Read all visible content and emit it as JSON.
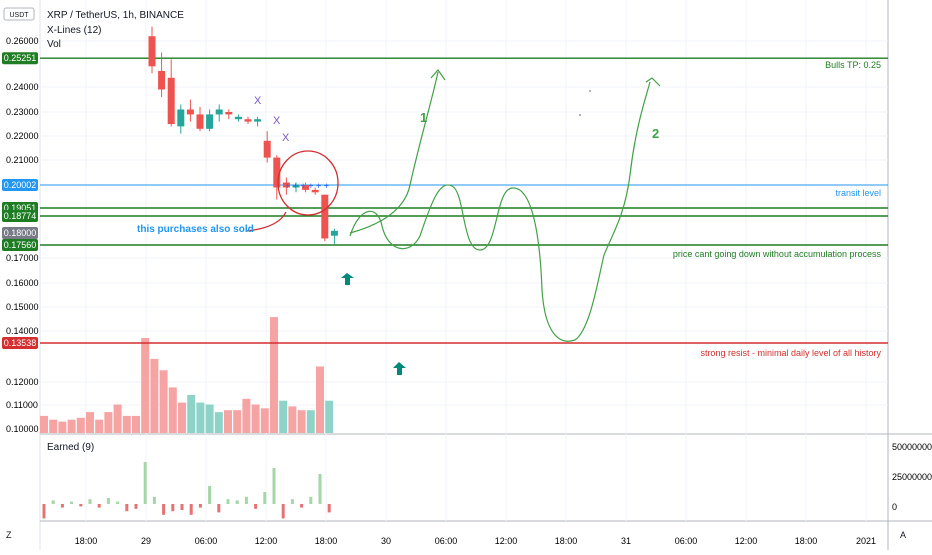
{
  "header": {
    "currency_badge": "USDT",
    "title": "XRP / TetherUS, 1h, BINANCE",
    "indicator_1": "X-Lines (12)",
    "indicator_2": "Vol",
    "pane_2_title": "Earned (9)"
  },
  "toolbar": {
    "left_btn": "Z",
    "right_btn": "A"
  },
  "y_axis": {
    "ticks": [
      "0.26000",
      "0.24000",
      "0.23000",
      "0.22000",
      "0.21000",
      "0.17000",
      "0.16000",
      "0.15000",
      "0.14000",
      "0.12000",
      "0.11000",
      "0.10000"
    ]
  },
  "price_tags": [
    {
      "label": "0.25251",
      "value": 0.25251,
      "color": "#1e7d22"
    },
    {
      "label": "0.20002",
      "value": 0.20002,
      "color": "#2196f3"
    },
    {
      "label": "0.19051",
      "value": 0.19051,
      "color": "#1e7d22"
    },
    {
      "label": "0.18774",
      "value": 0.18774,
      "color": "#1e7d22"
    },
    {
      "label": "0.18000",
      "value": 0.18,
      "color": "#787b86"
    },
    {
      "label": "0.17560",
      "value": 0.1756,
      "color": "#1e7d22"
    },
    {
      "label": "0.13538",
      "value": 0.13538,
      "color": "#d32f2f"
    }
  ],
  "lower_axis": {
    "ticks": [
      "50000000",
      "25000000",
      "0"
    ]
  },
  "x_axis": {
    "ticks": [
      "18:00",
      "29",
      "06:00",
      "12:00",
      "18:00",
      "30",
      "06:00",
      "12:00",
      "18:00",
      "31",
      "06:00",
      "12:00",
      "18:00",
      "2021"
    ]
  },
  "annotations": {
    "bulls_tp": "Bulls TP: 0.25",
    "transit": "transit level",
    "accumulation": "price cant going down without accumulation process",
    "strong_resist": "strong resist - minimal daily level of all history",
    "purchases": "this purchases also sold",
    "path_1": "1",
    "path_2": "2",
    "x_mark": "X"
  },
  "colors": {
    "bull": "#26a69a",
    "bear": "#ef5350",
    "level_green": "#1e7d22",
    "transit": "#2196f3",
    "resist": "#d32f2f"
  },
  "chart_data": {
    "type": "candlestick",
    "symbol": "XRP / TetherUS",
    "interval": "1h",
    "levels": [
      {
        "name": "Bulls TP: 0.25",
        "value": 0.25251
      },
      {
        "name": "transit level",
        "value": 0.20002
      },
      {
        "name": "",
        "value": 0.19051
      },
      {
        "name": "",
        "value": 0.18774
      },
      {
        "name": "price cant going down without accumulation process",
        "value": 0.1756
      },
      {
        "name": "strong resist - minimal daily level of all history",
        "value": 0.13538
      }
    ],
    "candles": [
      {
        "o": 0.262,
        "h": 0.266,
        "l": 0.246,
        "c": 0.249
      },
      {
        "o": 0.247,
        "h": 0.255,
        "l": 0.236,
        "c": 0.239
      },
      {
        "o": 0.244,
        "h": 0.252,
        "l": 0.224,
        "c": 0.225
      },
      {
        "o": 0.224,
        "h": 0.233,
        "l": 0.221,
        "c": 0.231
      },
      {
        "o": 0.231,
        "h": 0.235,
        "l": 0.226,
        "c": 0.229
      },
      {
        "o": 0.229,
        "h": 0.232,
        "l": 0.222,
        "c": 0.223
      },
      {
        "o": 0.223,
        "h": 0.231,
        "l": 0.222,
        "c": 0.229
      },
      {
        "o": 0.229,
        "h": 0.233,
        "l": 0.226,
        "c": 0.231
      },
      {
        "o": 0.23,
        "h": 0.231,
        "l": 0.227,
        "c": 0.229
      },
      {
        "o": 0.227,
        "h": 0.229,
        "l": 0.226,
        "c": 0.228
      },
      {
        "o": 0.227,
        "h": 0.228,
        "l": 0.225,
        "c": 0.226
      },
      {
        "o": 0.226,
        "h": 0.228,
        "l": 0.224,
        "c": 0.227
      },
      {
        "o": 0.218,
        "h": 0.222,
        "l": 0.209,
        "c": 0.211
      },
      {
        "o": 0.211,
        "h": 0.212,
        "l": 0.194,
        "c": 0.199
      },
      {
        "o": 0.201,
        "h": 0.203,
        "l": 0.196,
        "c": 0.199
      },
      {
        "o": 0.199,
        "h": 0.201,
        "l": 0.197,
        "c": 0.2
      },
      {
        "o": 0.2,
        "h": 0.201,
        "l": 0.197,
        "c": 0.198
      },
      {
        "o": 0.198,
        "h": 0.199,
        "l": 0.196,
        "c": 0.197
      },
      {
        "o": 0.196,
        "h": 0.196,
        "l": 0.177,
        "c": 0.178
      },
      {
        "o": 0.179,
        "h": 0.182,
        "l": 0.176,
        "c": 0.181
      }
    ],
    "volume_relative": [
      0.09,
      0.07,
      0.06,
      0.07,
      0.08,
      0.11,
      0.07,
      0.11,
      0.15,
      0.09,
      0.09,
      0.5,
      0.39,
      0.33,
      0.24,
      0.16,
      0.2,
      0.16,
      0.15,
      0.11,
      0.12,
      0.12,
      0.18,
      0.15,
      0.13,
      0.61,
      0.17,
      0.14,
      0.12,
      0.12,
      0.35,
      0.17
    ],
    "volume_bull": [
      false,
      false,
      false,
      false,
      false,
      false,
      false,
      false,
      false,
      false,
      false,
      false,
      false,
      false,
      false,
      false,
      true,
      true,
      true,
      true,
      false,
      false,
      false,
      false,
      false,
      false,
      true,
      false,
      false,
      true,
      false,
      true
    ],
    "earned_relative": [
      -0.12,
      0.03,
      -0.03,
      0.02,
      -0.02,
      0.04,
      -0.03,
      0.05,
      0.02,
      -0.06,
      -0.04,
      0.35,
      0.06,
      -0.09,
      -0.06,
      -0.05,
      -0.09,
      -0.03,
      0.15,
      -0.07,
      0.04,
      0.03,
      0.06,
      -0.04,
      0.1,
      0.3,
      -0.12,
      0.04,
      -0.03,
      0.06,
      0.25,
      -0.07
    ]
  }
}
